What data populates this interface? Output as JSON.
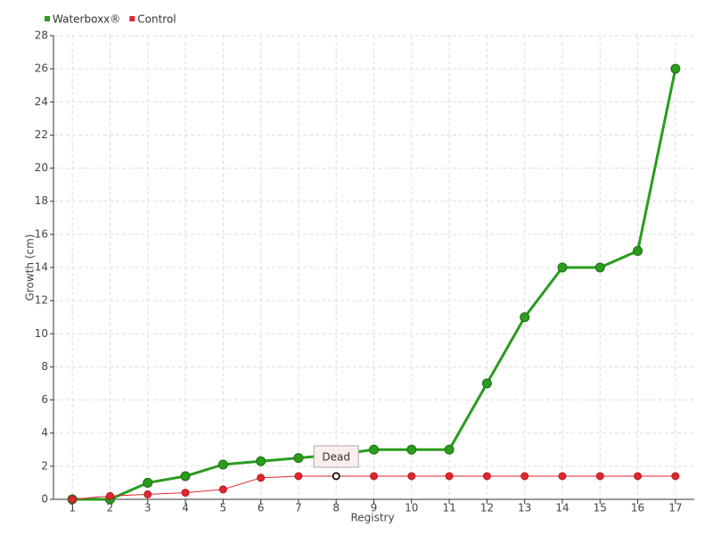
{
  "chart_data": {
    "type": "line",
    "x_label": "Registry",
    "y_label": "Growth (cm)",
    "categories": [
      "1",
      "2",
      "3",
      "4",
      "5",
      "6",
      "7",
      "8",
      "9",
      "10",
      "11",
      "12",
      "13",
      "14",
      "15",
      "16",
      "17"
    ],
    "series": [
      {
        "name": "Waterboxx®",
        "color": "#2a9c1e",
        "values": [
          0,
          0,
          1,
          1.4,
          2.1,
          2.3,
          2.5,
          2.7,
          3,
          3,
          3,
          7,
          11,
          14,
          14,
          15,
          26
        ]
      },
      {
        "name": "Control",
        "color": "#e0262e",
        "values": [
          0,
          0.2,
          0.3,
          0.4,
          0.6,
          1.3,
          1.4,
          1.4,
          1.4,
          1.4,
          1.4,
          1.4,
          1.4,
          1.4,
          1.4,
          1.4,
          1.4
        ]
      }
    ],
    "annotations": [
      {
        "text": "Dead",
        "x": "8",
        "series": "Control"
      }
    ],
    "ylim": [
      0,
      28
    ],
    "yticks": [
      0,
      2,
      4,
      6,
      8,
      10,
      12,
      14,
      16,
      18,
      20,
      22,
      24,
      26,
      28
    ],
    "grid": true
  }
}
